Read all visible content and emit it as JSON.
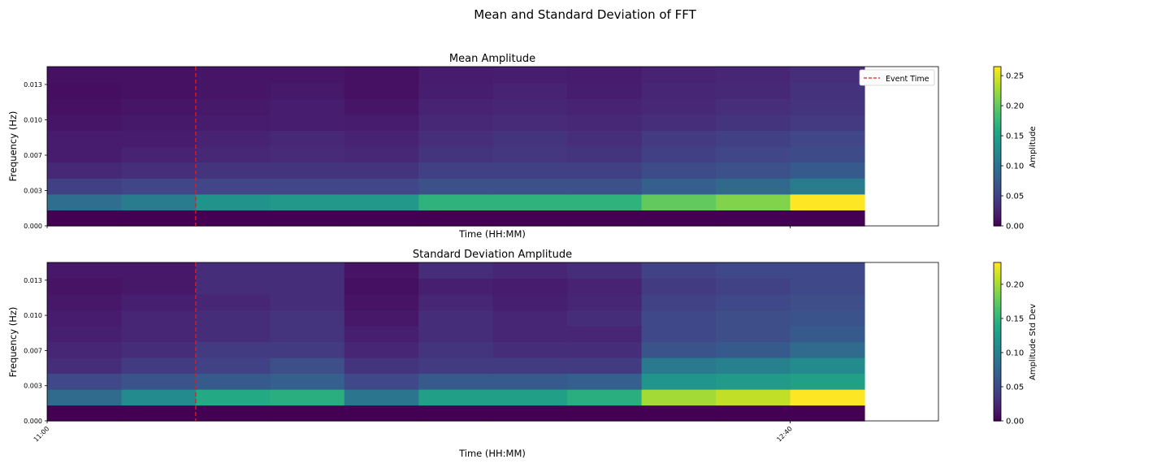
{
  "figure": {
    "title": "Mean and Standard Deviation of FFT"
  },
  "legend": {
    "label": "Event Time",
    "color": "#e41a1c"
  },
  "chart_data": [
    {
      "type": "heatmap",
      "title": "Mean Amplitude",
      "xlabel": "Time (HH:MM)",
      "ylabel": "Frequency (Hz)",
      "colormap": "viridis",
      "colorbar_label": "Amplitude",
      "colorbar_range": [
        0.0,
        0.265
      ],
      "colorbar_ticks": [
        "0.00",
        "0.05",
        "0.10",
        "0.15",
        "0.20",
        "0.25"
      ],
      "colorbar_tick_values": [
        0.0,
        0.05,
        0.1,
        0.15,
        0.2,
        0.25
      ],
      "x_tick_labels": [],
      "y_tick_labels": [
        "0.000",
        "0.003",
        "0.007",
        "0.010",
        "0.013"
      ],
      "event_time_column": 2,
      "n_time_bins": 11,
      "n_freq_bins": 10,
      "values": [
        [
          0.0,
          0.0,
          0.0,
          0.0,
          0.0,
          0.0,
          0.0,
          0.0,
          0.0,
          0.0,
          0.0
        ],
        [
          0.095,
          0.11,
          0.135,
          0.14,
          0.14,
          0.17,
          0.17,
          0.17,
          0.2,
          0.215,
          0.265
        ],
        [
          0.05,
          0.055,
          0.055,
          0.055,
          0.055,
          0.065,
          0.065,
          0.065,
          0.08,
          0.09,
          0.11
        ],
        [
          0.03,
          0.035,
          0.04,
          0.04,
          0.04,
          0.05,
          0.05,
          0.05,
          0.06,
          0.065,
          0.075
        ],
        [
          0.02,
          0.025,
          0.03,
          0.032,
          0.03,
          0.04,
          0.042,
          0.04,
          0.05,
          0.055,
          0.06
        ],
        [
          0.02,
          0.02,
          0.025,
          0.03,
          0.025,
          0.035,
          0.04,
          0.035,
          0.045,
          0.05,
          0.055
        ],
        [
          0.015,
          0.018,
          0.02,
          0.022,
          0.02,
          0.03,
          0.032,
          0.03,
          0.035,
          0.04,
          0.045
        ],
        [
          0.012,
          0.015,
          0.018,
          0.022,
          0.015,
          0.025,
          0.028,
          0.025,
          0.03,
          0.035,
          0.04
        ],
        [
          0.01,
          0.012,
          0.015,
          0.018,
          0.012,
          0.022,
          0.025,
          0.022,
          0.028,
          0.03,
          0.038
        ],
        [
          0.012,
          0.012,
          0.015,
          0.015,
          0.012,
          0.02,
          0.022,
          0.02,
          0.025,
          0.028,
          0.035
        ]
      ]
    },
    {
      "type": "heatmap",
      "title": "Standard Deviation Amplitude",
      "xlabel": "Time (HH:MM)",
      "ylabel": "Frequency (Hz)",
      "colormap": "viridis",
      "colorbar_label": "Amplitude Std Dev",
      "colorbar_range": [
        0.0,
        0.232
      ],
      "colorbar_ticks": [
        "0.00",
        "0.05",
        "0.10",
        "0.15",
        "0.20"
      ],
      "colorbar_tick_values": [
        0.0,
        0.05,
        0.1,
        0.15,
        0.2
      ],
      "x_tick_labels": [
        "11:00",
        "12:40"
      ],
      "y_tick_labels": [
        "0.000",
        "0.003",
        "0.007",
        "0.010",
        "0.013"
      ],
      "event_time_column": 2,
      "n_time_bins": 11,
      "n_freq_bins": 10,
      "values": [
        [
          0.0,
          0.0,
          0.0,
          0.0,
          0.0,
          0.0,
          0.0,
          0.0,
          0.0,
          0.0,
          0.0
        ],
        [
          0.08,
          0.11,
          0.14,
          0.145,
          0.09,
          0.13,
          0.13,
          0.145,
          0.2,
          0.21,
          0.232
        ],
        [
          0.05,
          0.06,
          0.065,
          0.07,
          0.05,
          0.065,
          0.065,
          0.07,
          0.12,
          0.125,
          0.13
        ],
        [
          0.03,
          0.04,
          0.045,
          0.055,
          0.035,
          0.04,
          0.04,
          0.04,
          0.095,
          0.1,
          0.11
        ],
        [
          0.025,
          0.03,
          0.04,
          0.04,
          0.025,
          0.035,
          0.03,
          0.03,
          0.06,
          0.065,
          0.08
        ],
        [
          0.02,
          0.025,
          0.03,
          0.035,
          0.02,
          0.03,
          0.025,
          0.025,
          0.05,
          0.055,
          0.065
        ],
        [
          0.018,
          0.025,
          0.03,
          0.035,
          0.015,
          0.03,
          0.025,
          0.03,
          0.05,
          0.055,
          0.06
        ],
        [
          0.015,
          0.02,
          0.025,
          0.03,
          0.012,
          0.025,
          0.02,
          0.025,
          0.045,
          0.05,
          0.055
        ],
        [
          0.012,
          0.015,
          0.03,
          0.03,
          0.01,
          0.02,
          0.018,
          0.022,
          0.04,
          0.045,
          0.05
        ],
        [
          0.015,
          0.015,
          0.03,
          0.03,
          0.012,
          0.03,
          0.025,
          0.03,
          0.045,
          0.05,
          0.05
        ]
      ]
    }
  ]
}
